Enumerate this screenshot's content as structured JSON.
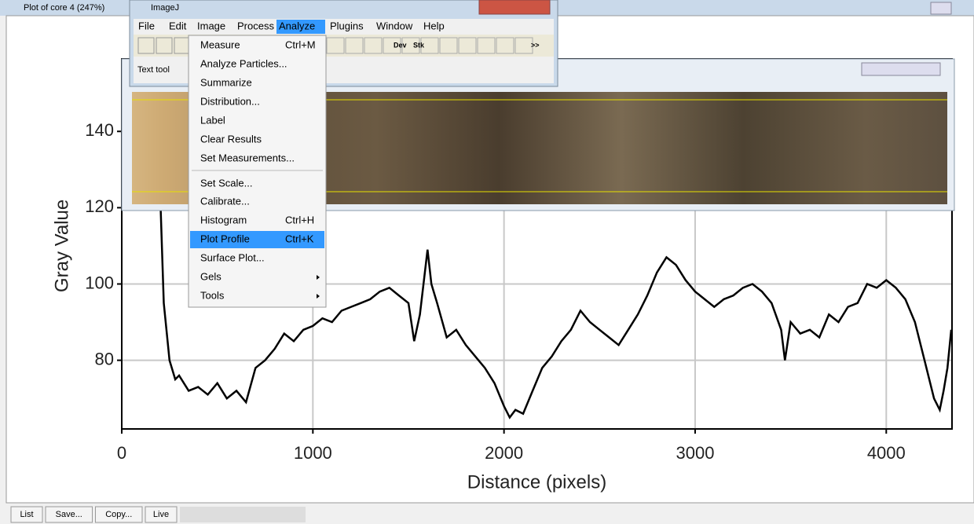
{
  "window_title": "Plot of core 4 (247%)",
  "imagej": {
    "title": "ImageJ",
    "menus": [
      "File",
      "Edit",
      "Image",
      "Process",
      "Analyze",
      "Plugins",
      "Window",
      "Help"
    ],
    "toolbar_labels": [
      "Dev",
      "Stk",
      ">>"
    ],
    "status": "Text tool"
  },
  "menu_items": [
    {
      "label": "Measure",
      "shortcut": "Ctrl+M"
    },
    {
      "label": "Analyze Particles..."
    },
    {
      "label": "Summarize"
    },
    {
      "label": "Distribution..."
    },
    {
      "label": "Label"
    },
    {
      "label": "Clear Results"
    },
    {
      "label": "Set Measurements..."
    },
    {
      "label": "Set Scale..."
    },
    {
      "label": "Calibrate..."
    },
    {
      "label": "Histogram",
      "shortcut": "Ctrl+H"
    },
    {
      "label": "Plot Profile",
      "shortcut": "Ctrl+K"
    },
    {
      "label": "Surface Plot..."
    },
    {
      "label": "Gels"
    },
    {
      "label": "Tools"
    }
  ],
  "buttons": [
    "List",
    "Save...",
    "Copy...",
    "Live"
  ],
  "chart_data": {
    "type": "line",
    "x_label": "Distance (pixels)",
    "y_label": "Gray Value",
    "x": [
      200,
      220,
      250,
      280,
      300,
      350,
      400,
      450,
      500,
      550,
      600,
      650,
      700,
      750,
      800,
      850,
      900,
      950,
      1000,
      1050,
      1100,
      1150,
      1200,
      1250,
      1300,
      1350,
      1400,
      1450,
      1500,
      1530,
      1560,
      1600,
      1620,
      1650,
      1700,
      1750,
      1800,
      1850,
      1900,
      1950,
      2000,
      2030,
      2060,
      2100,
      2150,
      2200,
      2250,
      2300,
      2350,
      2400,
      2450,
      2500,
      2550,
      2600,
      2650,
      2700,
      2750,
      2800,
      2850,
      2900,
      2950,
      3000,
      3050,
      3100,
      3150,
      3200,
      3250,
      3300,
      3350,
      3400,
      3450,
      3470,
      3500,
      3550,
      3600,
      3650,
      3700,
      3750,
      3800,
      3850,
      3900,
      3950,
      4000,
      4050,
      4100,
      4150,
      4200,
      4250,
      4280,
      4300,
      4320,
      4340
    ],
    "values": [
      125,
      95,
      80,
      75,
      76,
      72,
      73,
      71,
      74,
      70,
      72,
      69,
      78,
      80,
      83,
      87,
      85,
      88,
      89,
      91,
      90,
      93,
      94,
      95,
      96,
      98,
      99,
      97,
      95,
      85,
      92,
      109,
      100,
      95,
      86,
      88,
      84,
      81,
      78,
      74,
      68,
      65,
      67,
      66,
      72,
      78,
      81,
      85,
      88,
      93,
      90,
      88,
      86,
      84,
      88,
      92,
      97,
      103,
      107,
      105,
      101,
      98,
      96,
      94,
      96,
      97,
      99,
      100,
      98,
      95,
      88,
      80,
      90,
      87,
      88,
      86,
      92,
      90,
      94,
      95,
      100,
      99,
      101,
      99,
      96,
      90,
      80,
      70,
      67,
      72,
      78,
      88
    ],
    "color": "#000000",
    "xlim": [
      0,
      4344
    ],
    "xticks": [
      0,
      1000,
      2000,
      3000,
      4000
    ],
    "ylim": [
      62,
      159
    ],
    "yticks": [
      80,
      100,
      120,
      140
    ],
    "grid": true
  }
}
